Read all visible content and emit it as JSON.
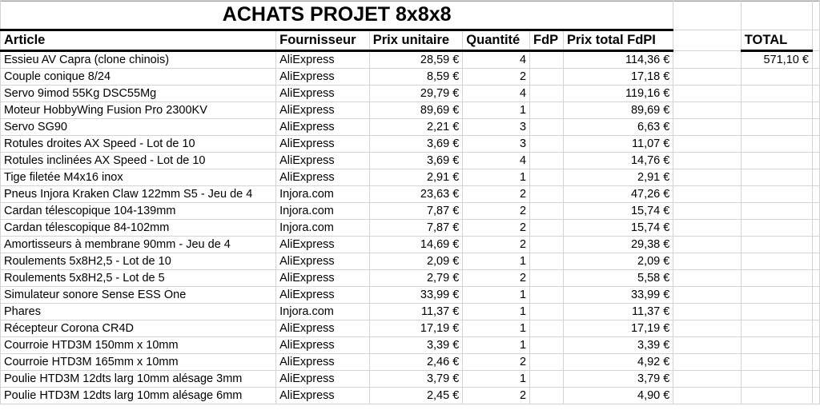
{
  "title": "ACHATS PROJET 8x8x8",
  "headers": {
    "article": "Article",
    "fournisseur": "Fournisseur",
    "prix_unitaire": "Prix unitaire",
    "quantite": "Quantité",
    "fdp": "FdP",
    "prix_total": "Prix total FdPI",
    "total": "TOTAL"
  },
  "total_value": "571,10 €",
  "rows": [
    [
      "Essieu AV Capra (clone chinois)",
      "AliExpress",
      "28,59 €",
      "4",
      "",
      "114,36 €"
    ],
    [
      "Couple conique 8/24",
      "AliExpress",
      "8,59 €",
      "2",
      "",
      "17,18 €"
    ],
    [
      "Servo 9imod 55Kg DSC55Mg",
      "AliExpress",
      "29,79 €",
      "4",
      "",
      "119,16 €"
    ],
    [
      "Moteur HobbyWing Fusion Pro 2300KV",
      "AliExpress",
      "89,69 €",
      "1",
      "",
      "89,69 €"
    ],
    [
      "Servo SG90",
      "AliExpress",
      "2,21 €",
      "3",
      "",
      "6,63 €"
    ],
    [
      "Rotules droites AX Speed - Lot de 10",
      "AliExpress",
      "3,69 €",
      "3",
      "",
      "11,07 €"
    ],
    [
      "Rotules inclinées AX Speed - Lot de 10",
      "AliExpress",
      "3,69 €",
      "4",
      "",
      "14,76 €"
    ],
    [
      "Tige filetée M4x16 inox",
      "AliExpress",
      "2,91 €",
      "1",
      "",
      "2,91 €"
    ],
    [
      "Pneus Injora Kraken Claw 122mm S5 - Jeu de 4",
      "Injora.com",
      "23,63 €",
      "2",
      "",
      "47,26 €"
    ],
    [
      "Cardan télescopique 104-139mm",
      "Injora.com",
      "7,87 €",
      "2",
      "",
      "15,74 €"
    ],
    [
      "Cardan télescopique 84-102mm",
      "Injora.com",
      "7,87 €",
      "2",
      "",
      "15,74 €"
    ],
    [
      "Amortisseurs à membrane 90mm - Jeu de 4",
      "AliExpress",
      "14,69 €",
      "2",
      "",
      "29,38 €"
    ],
    [
      "Roulements 5x8H2,5 - Lot de 10",
      "AliExpress",
      "2,09 €",
      "1",
      "",
      "2,09 €"
    ],
    [
      "Roulements 5x8H2,5 - Lot de 5",
      "AliExpress",
      "2,79 €",
      "2",
      "",
      "5,58 €"
    ],
    [
      "Simulateur sonore Sense ESS One",
      "AliExpress",
      "33,99 €",
      "1",
      "",
      "33,99 €"
    ],
    [
      "Phares",
      "Injora.com",
      "11,37 €",
      "1",
      "",
      "11,37 €"
    ],
    [
      "Récepteur Corona CR4D",
      "AliExpress",
      "17,19 €",
      "1",
      "",
      "17,19 €"
    ],
    [
      "Courroie HTD3M 150mm x 10mm",
      "AliExpress",
      "3,39 €",
      "1",
      "",
      "3,39 €"
    ],
    [
      "Courroie HTD3M 165mm x 10mm",
      "AliExpress",
      "2,46 €",
      "2",
      "",
      "4,92 €"
    ],
    [
      "Poulie HTD3M 12dts larg 10mm alésage 3mm",
      "AliExpress",
      "3,79 €",
      "1",
      "",
      "3,79 €"
    ],
    [
      "Poulie HTD3M 12dts larg 10mm alésage 6mm",
      "AliExpress",
      "2,45 €",
      "2",
      "",
      "4,90 €"
    ]
  ]
}
